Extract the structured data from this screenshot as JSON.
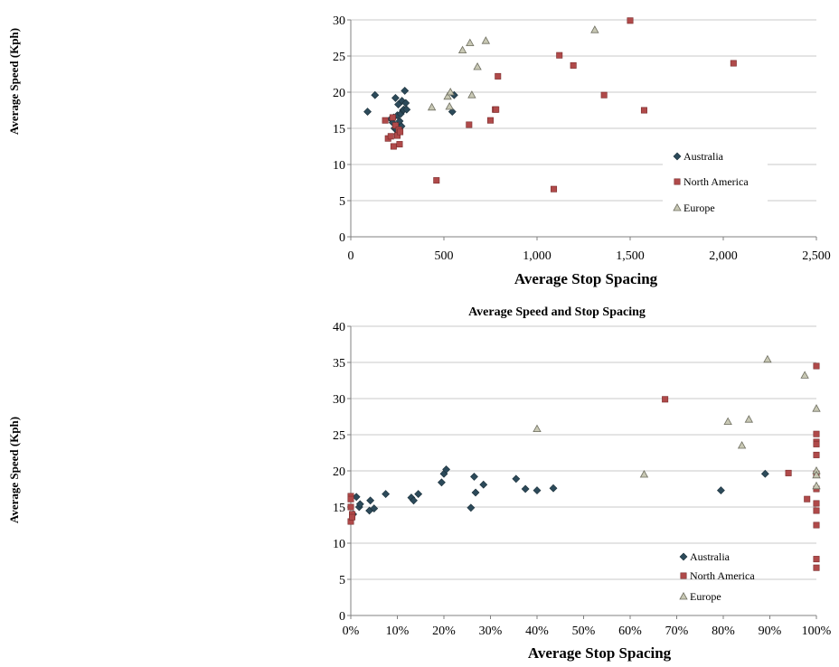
{
  "colors": {
    "australia": "#2c4a5a",
    "north_america": "#b04a4a",
    "europe": "#c8c8b4",
    "grid": "#c8c8c8",
    "axis": "#808080"
  },
  "chart_data": [
    {
      "type": "scatter",
      "title": "",
      "xlabel": "Average Stop Spacing",
      "ylabel": "Average Speed (Kph)",
      "xlim": [
        0,
        2500
      ],
      "ylim": [
        0,
        30
      ],
      "xticks": [
        0,
        500,
        1000,
        1500,
        2000,
        2500
      ],
      "xtick_labels": [
        "0",
        "500",
        "1,000",
        "1,500",
        "2,000",
        "2,500"
      ],
      "yticks": [
        0,
        5,
        10,
        15,
        20,
        25,
        30
      ],
      "ytick_labels": [
        "0",
        "5",
        "10",
        "15",
        "20",
        "25",
        "30"
      ],
      "grid": "horizontal",
      "legend": "bottom-right",
      "series": [
        {
          "name": "Australia",
          "marker": "diamond",
          "color": "#2c4a5a",
          "points": [
            [
              90,
              17.3
            ],
            [
              130,
              19.6
            ],
            [
              215,
              16.3
            ],
            [
              225,
              15.8
            ],
            [
              230,
              16.5
            ],
            [
              235,
              15.0
            ],
            [
              240,
              19.2
            ],
            [
              245,
              14.8
            ],
            [
              250,
              16.8
            ],
            [
              252,
              14.2
            ],
            [
              255,
              18.3
            ],
            [
              258,
              15.5
            ],
            [
              262,
              16.0
            ],
            [
              268,
              17.0
            ],
            [
              272,
              15.3
            ],
            [
              275,
              18.8
            ],
            [
              280,
              17.5
            ],
            [
              285,
              17.6
            ],
            [
              290,
              20.2
            ],
            [
              295,
              18.5
            ],
            [
              300,
              17.6
            ],
            [
              545,
              17.3
            ],
            [
              555,
              19.6
            ]
          ]
        },
        {
          "name": "North America",
          "marker": "square",
          "color": "#b04a4a",
          "points": [
            [
              185,
              16.1
            ],
            [
              200,
              13.6
            ],
            [
              215,
              13.9
            ],
            [
              225,
              16.5
            ],
            [
              230,
              12.5
            ],
            [
              240,
              15.4
            ],
            [
              250,
              14.0
            ],
            [
              258,
              14.8
            ],
            [
              262,
              12.8
            ],
            [
              265,
              14.5
            ],
            [
              460,
              7.8
            ],
            [
              635,
              15.5
            ],
            [
              750,
              16.1
            ],
            [
              775,
              17.6
            ],
            [
              780,
              17.6
            ],
            [
              790,
              22.2
            ],
            [
              1090,
              6.6
            ],
            [
              1120,
              25.1
            ],
            [
              1195,
              23.7
            ],
            [
              1360,
              19.6
            ],
            [
              1500,
              29.9
            ],
            [
              1575,
              17.5
            ],
            [
              2055,
              24.0
            ]
          ]
        },
        {
          "name": "Europe",
          "marker": "triangle",
          "color": "#c8c8b4",
          "points": [
            [
              435,
              17.9
            ],
            [
              520,
              19.4
            ],
            [
              530,
              18.0
            ],
            [
              535,
              20.0
            ],
            [
              600,
              25.8
            ],
            [
              640,
              26.8
            ],
            [
              650,
              19.6
            ],
            [
              680,
              23.5
            ],
            [
              725,
              27.1
            ],
            [
              1310,
              28.6
            ]
          ]
        }
      ]
    },
    {
      "type": "scatter",
      "title": "Average Speed and Stop Spacing",
      "xlabel": "Average Stop Spacing",
      "ylabel": "Average Speed (Kph)",
      "xlim": [
        0,
        100
      ],
      "ylim": [
        0,
        40
      ],
      "xticks": [
        0,
        10,
        20,
        30,
        40,
        50,
        60,
        70,
        80,
        90,
        100
      ],
      "xtick_labels": [
        "0%",
        "10%",
        "20%",
        "30%",
        "40%",
        "50%",
        "60%",
        "70%",
        "80%",
        "90%",
        "100%"
      ],
      "yticks": [
        0,
        5,
        10,
        15,
        20,
        25,
        30,
        35,
        40
      ],
      "ytick_labels": [
        "0",
        "5",
        "10",
        "15",
        "20",
        "25",
        "30",
        "35",
        "40"
      ],
      "grid": "horizontal",
      "legend": "bottom-right",
      "series": [
        {
          "name": "Australia",
          "marker": "diamond",
          "color": "#2c4a5a",
          "points": [
            [
              0.5,
              14.0
            ],
            [
              1.2,
              16.4
            ],
            [
              1.8,
              15.0
            ],
            [
              2.0,
              15.4
            ],
            [
              4.0,
              14.5
            ],
            [
              4.2,
              15.9
            ],
            [
              5.0,
              14.8
            ],
            [
              7.5,
              16.8
            ],
            [
              13.0,
              16.3
            ],
            [
              13.5,
              15.9
            ],
            [
              14.5,
              16.8
            ],
            [
              19.5,
              18.4
            ],
            [
              20.0,
              19.6
            ],
            [
              20.5,
              20.2
            ],
            [
              25.8,
              14.9
            ],
            [
              26.5,
              19.2
            ],
            [
              26.8,
              17.0
            ],
            [
              28.5,
              18.1
            ],
            [
              35.5,
              18.9
            ],
            [
              37.5,
              17.5
            ],
            [
              40.0,
              17.3
            ],
            [
              43.5,
              17.6
            ],
            [
              79.5,
              17.3
            ],
            [
              89.0,
              19.6
            ]
          ]
        },
        {
          "name": "North America",
          "marker": "square",
          "color": "#b04a4a",
          "points": [
            [
              0,
              16.5
            ],
            [
              0,
              16.1
            ],
            [
              0,
              15.0
            ],
            [
              0,
              13.0
            ],
            [
              0.3,
              14.0
            ],
            [
              0.3,
              13.6
            ],
            [
              67.5,
              29.9
            ],
            [
              94.0,
              19.7
            ],
            [
              98.0,
              16.1
            ],
            [
              100,
              34.5
            ],
            [
              100,
              25.1
            ],
            [
              100,
              24.0
            ],
            [
              100,
              23.7
            ],
            [
              100,
              22.2
            ],
            [
              100,
              19.6
            ],
            [
              100,
              17.5
            ],
            [
              100,
              15.5
            ],
            [
              100,
              14.5
            ],
            [
              100,
              12.5
            ],
            [
              100,
              7.8
            ],
            [
              100,
              6.6
            ]
          ]
        },
        {
          "name": "Europe",
          "marker": "triangle",
          "color": "#c8c8b4",
          "points": [
            [
              40.0,
              25.8
            ],
            [
              63.0,
              19.5
            ],
            [
              81.0,
              26.8
            ],
            [
              84.0,
              23.5
            ],
            [
              85.5,
              27.1
            ],
            [
              89.5,
              35.4
            ],
            [
              97.5,
              33.2
            ],
            [
              100,
              28.6
            ],
            [
              100,
              20.0
            ],
            [
              100,
              19.4
            ],
            [
              100,
              17.9
            ]
          ]
        }
      ]
    }
  ]
}
